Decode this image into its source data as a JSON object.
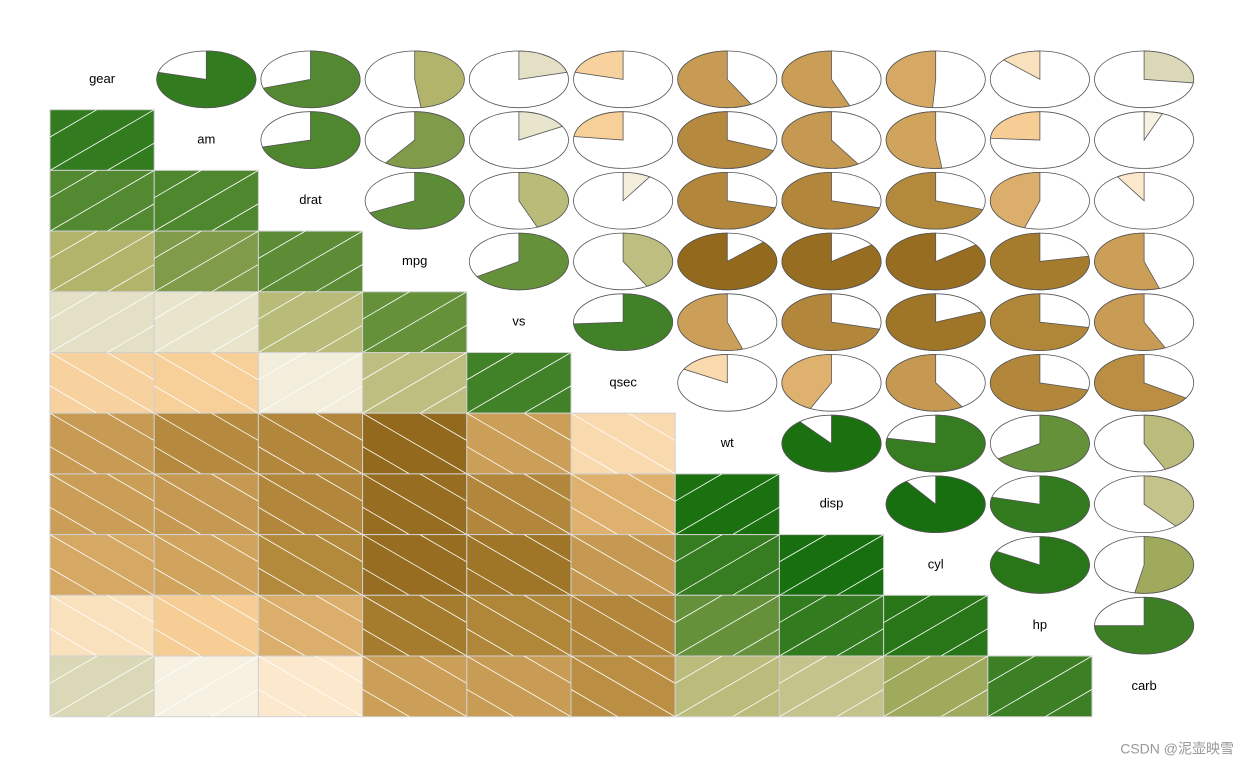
{
  "chart_data": {
    "type": "corrgram",
    "variables": [
      "gear",
      "am",
      "drat",
      "mpg",
      "vs",
      "qsec",
      "wt",
      "disp",
      "cyl",
      "hp",
      "carb"
    ],
    "correlations": [
      [
        null,
        0.79,
        0.7,
        0.48,
        0.21,
        -0.21,
        -0.58,
        -0.56,
        -0.49,
        -0.13,
        0.27
      ],
      [
        0.79,
        null,
        0.71,
        0.6,
        0.17,
        -0.23,
        -0.69,
        -0.59,
        -0.52,
        -0.24,
        0.06
      ],
      [
        0.7,
        0.71,
        null,
        0.68,
        0.44,
        0.09,
        -0.71,
        -0.71,
        -0.7,
        -0.45,
        -0.09
      ],
      [
        0.48,
        0.6,
        0.68,
        null,
        0.66,
        0.42,
        -0.87,
        -0.85,
        -0.85,
        -0.78,
        -0.55
      ],
      [
        0.21,
        0.17,
        0.44,
        0.66,
        null,
        0.74,
        -0.55,
        -0.71,
        -0.81,
        -0.72,
        -0.57
      ],
      [
        -0.21,
        -0.23,
        0.09,
        0.42,
        0.74,
        null,
        -0.17,
        -0.43,
        -0.59,
        -0.71,
        -0.66
      ],
      [
        -0.58,
        -0.69,
        -0.71,
        -0.87,
        -0.55,
        -0.17,
        null,
        0.89,
        0.78,
        0.66,
        0.43
      ],
      [
        -0.56,
        -0.59,
        -0.71,
        -0.85,
        -0.71,
        -0.43,
        0.89,
        null,
        0.9,
        0.79,
        0.39
      ],
      [
        -0.49,
        -0.52,
        -0.7,
        -0.85,
        -0.81,
        -0.59,
        0.78,
        0.9,
        null,
        0.83,
        0.53
      ],
      [
        -0.13,
        -0.24,
        -0.45,
        -0.78,
        -0.72,
        -0.71,
        0.66,
        0.79,
        0.83,
        null,
        0.75
      ],
      [
        0.27,
        0.06,
        -0.09,
        -0.55,
        -0.57,
        -0.66,
        0.43,
        0.39,
        0.53,
        0.75,
        null
      ]
    ],
    "colors": [
      "#7a5005",
      "#ab8133",
      "#d4a762",
      "#f6cb90",
      "#fff8ee",
      "#dedcbd",
      "#adb063",
      "#3d7f25",
      "#006400"
    ],
    "watermark": "CSDN @泥壶映雪"
  }
}
